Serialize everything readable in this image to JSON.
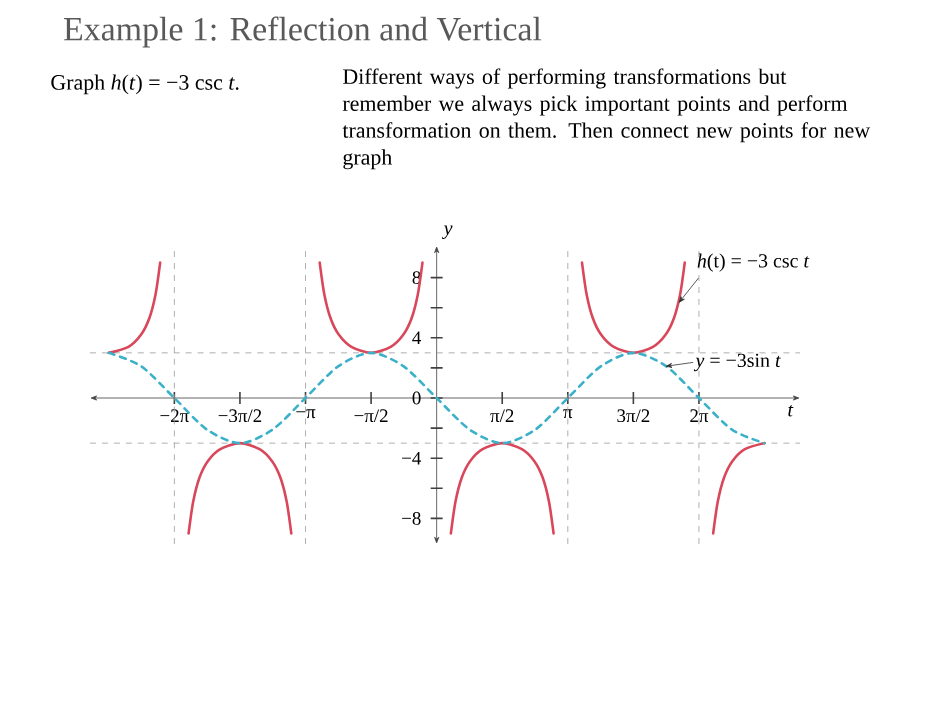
{
  "chart_data": {
    "type": "line",
    "title": "Example 1: Reflection and Vertical",
    "xlabel": "t",
    "ylabel": "y",
    "xlim": [
      -8.3,
      8.7
    ],
    "ylim": [
      -9.7,
      10.1
    ],
    "xticks": [
      {
        "value": -6.28,
        "label": "−2π"
      },
      {
        "value": -4.71,
        "label": "−3π/2"
      },
      {
        "value": -3.14,
        "label": "−π"
      },
      {
        "value": -1.57,
        "label": "−π/2"
      },
      {
        "value": 1.57,
        "label": "π/2"
      },
      {
        "value": 3.14,
        "label": "π"
      },
      {
        "value": 4.71,
        "label": "3π/2"
      },
      {
        "value": 6.28,
        "label": "2π"
      }
    ],
    "yticks": [
      {
        "value": -8,
        "label": "−8"
      },
      {
        "value": -6,
        "label": null
      },
      {
        "value": -4,
        "label": "−4"
      },
      {
        "value": -2,
        "label": null
      },
      0,
      {
        "value": 2,
        "label": null
      },
      {
        "value": 4,
        "label": "4"
      },
      {
        "value": 6,
        "label": null
      },
      {
        "value": 8,
        "label": "8"
      }
    ],
    "series": [
      {
        "color": "#d9475a",
        "line_style": "solid",
        "x": [
          -7.85,
          -7.38,
          -7.08,
          -6.88,
          -6.73,
          -6.62,
          -6.28,
          -5.94,
          -5.83,
          -5.68,
          -5.48,
          -5.18,
          -4.71,
          -4.24,
          -3.94,
          -3.74,
          -3.59,
          -3.48,
          -3.14,
          -2.8,
          -2.69,
          -2.54,
          -2.34,
          -2.04,
          -1.57,
          -1.1,
          -0.8,
          -0.6,
          -0.45,
          -0.34,
          0,
          0.34,
          0.45,
          0.6,
          0.8,
          1.1,
          1.57,
          2.04,
          2.34,
          2.54,
          2.69,
          2.8,
          3.14,
          3.48,
          3.59,
          3.74,
          3.94,
          4.24,
          4.71,
          5.18,
          5.48,
          5.68,
          5.83,
          5.94,
          6.28,
          6.62,
          6.73,
          6.88,
          7.08,
          7.38,
          7.85
        ],
        "values": [
          3,
          3.4,
          4.2,
          5.3,
          6.9,
          9.0,
          null,
          -9.0,
          -6.9,
          -5.3,
          -4.2,
          -3.4,
          -3,
          -3.4,
          -4.2,
          -5.3,
          -6.9,
          -9.0,
          null,
          9.0,
          6.9,
          5.3,
          4.2,
          3.4,
          3,
          3.4,
          4.2,
          5.3,
          6.9,
          9.0,
          null,
          -9.0,
          -6.9,
          -5.3,
          -4.2,
          -3.4,
          -3,
          -3.4,
          -4.2,
          -5.3,
          -6.9,
          -9.0,
          null,
          9.0,
          6.9,
          5.3,
          4.2,
          3.4,
          3,
          3.4,
          4.2,
          5.3,
          6.9,
          9.0,
          null,
          -9.0,
          -6.9,
          -5.3,
          -4.2,
          -3.4,
          -3
        ]
      },
      {
        "color": "#3bb0c9",
        "line_style": "dashed",
        "x": [
          -7.85,
          -7.07,
          -6.28,
          -5.5,
          -4.71,
          -3.93,
          -3.14,
          -2.36,
          -1.57,
          -0.79,
          0,
          0.79,
          1.57,
          2.36,
          3.14,
          3.93,
          4.71,
          5.5,
          6.28,
          7.07,
          7.85
        ],
        "values": [
          3,
          2.1,
          0,
          -2.1,
          -3,
          -2.1,
          0,
          2.1,
          3,
          2.1,
          0,
          -2.1,
          -3,
          -2.1,
          0,
          2.1,
          3,
          2.1,
          0,
          -2.1,
          -3
        ]
      }
    ],
    "ref_lines": [
      {
        "axis": "x",
        "value": -6.28,
        "color": "#9a9a9a",
        "line_style": "dashed"
      },
      {
        "axis": "x",
        "value": -3.14,
        "color": "#9a9a9a",
        "line_style": "dashed"
      },
      {
        "axis": "x",
        "value": 3.14,
        "color": "#9a9a9a",
        "line_style": "dashed"
      },
      {
        "axis": "x",
        "value": 6.28,
        "color": "#9a9a9a",
        "line_style": "dashed"
      },
      {
        "axis": "y",
        "value": 3,
        "color": "#9a9a9a",
        "line_style": "dashed"
      },
      {
        "axis": "y",
        "value": -3,
        "color": "#9a9a9a",
        "line_style": "dashed"
      }
    ],
    "annotations": [
      "Graph *h*(*t*) = −3 csc *t*.",
      "Different ways of performing transformations but remember we always pick important points and perform transformation on them. Then connect new points for new graph",
      {
        "text": "*h*(t) = −3 csc *t*",
        "x": 5.79,
        "y": 6.3
      },
      {
        "text": "*y* = −3sin *t*",
        "x": 5.47,
        "y": 2.1
      }
    ],
    "marker": "none"
  }
}
